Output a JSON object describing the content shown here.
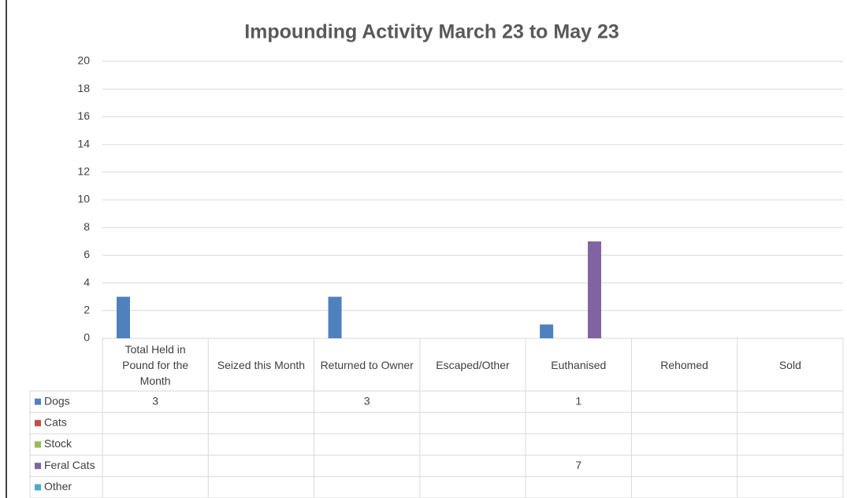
{
  "chart_data": {
    "type": "bar",
    "title": "Impounding Activity March 23 to May 23",
    "categories": [
      "Total Held in Pound for the Month",
      "Seized this Month",
      "Returned to Owner",
      "Escaped/Other",
      "Euthanised",
      "Rehomed",
      "Sold"
    ],
    "series": [
      {
        "name": "Dogs",
        "color": "#4f81bd",
        "values": [
          3,
          null,
          3,
          null,
          1,
          null,
          null
        ]
      },
      {
        "name": "Cats",
        "color": "#c0504d",
        "values": [
          null,
          null,
          null,
          null,
          null,
          null,
          null
        ]
      },
      {
        "name": "Stock",
        "color": "#9bbb59",
        "values": [
          null,
          null,
          null,
          null,
          null,
          null,
          null
        ]
      },
      {
        "name": "Feral Cats",
        "color": "#8064a2",
        "values": [
          null,
          null,
          null,
          null,
          7,
          null,
          null
        ]
      },
      {
        "name": "Other",
        "color": "#4bacc6",
        "values": [
          null,
          null,
          null,
          null,
          null,
          null,
          null
        ]
      }
    ],
    "ylim": [
      0,
      20
    ],
    "yticks": [
      0,
      2,
      4,
      6,
      8,
      10,
      12,
      14,
      16,
      18,
      20
    ],
    "grid": true
  }
}
